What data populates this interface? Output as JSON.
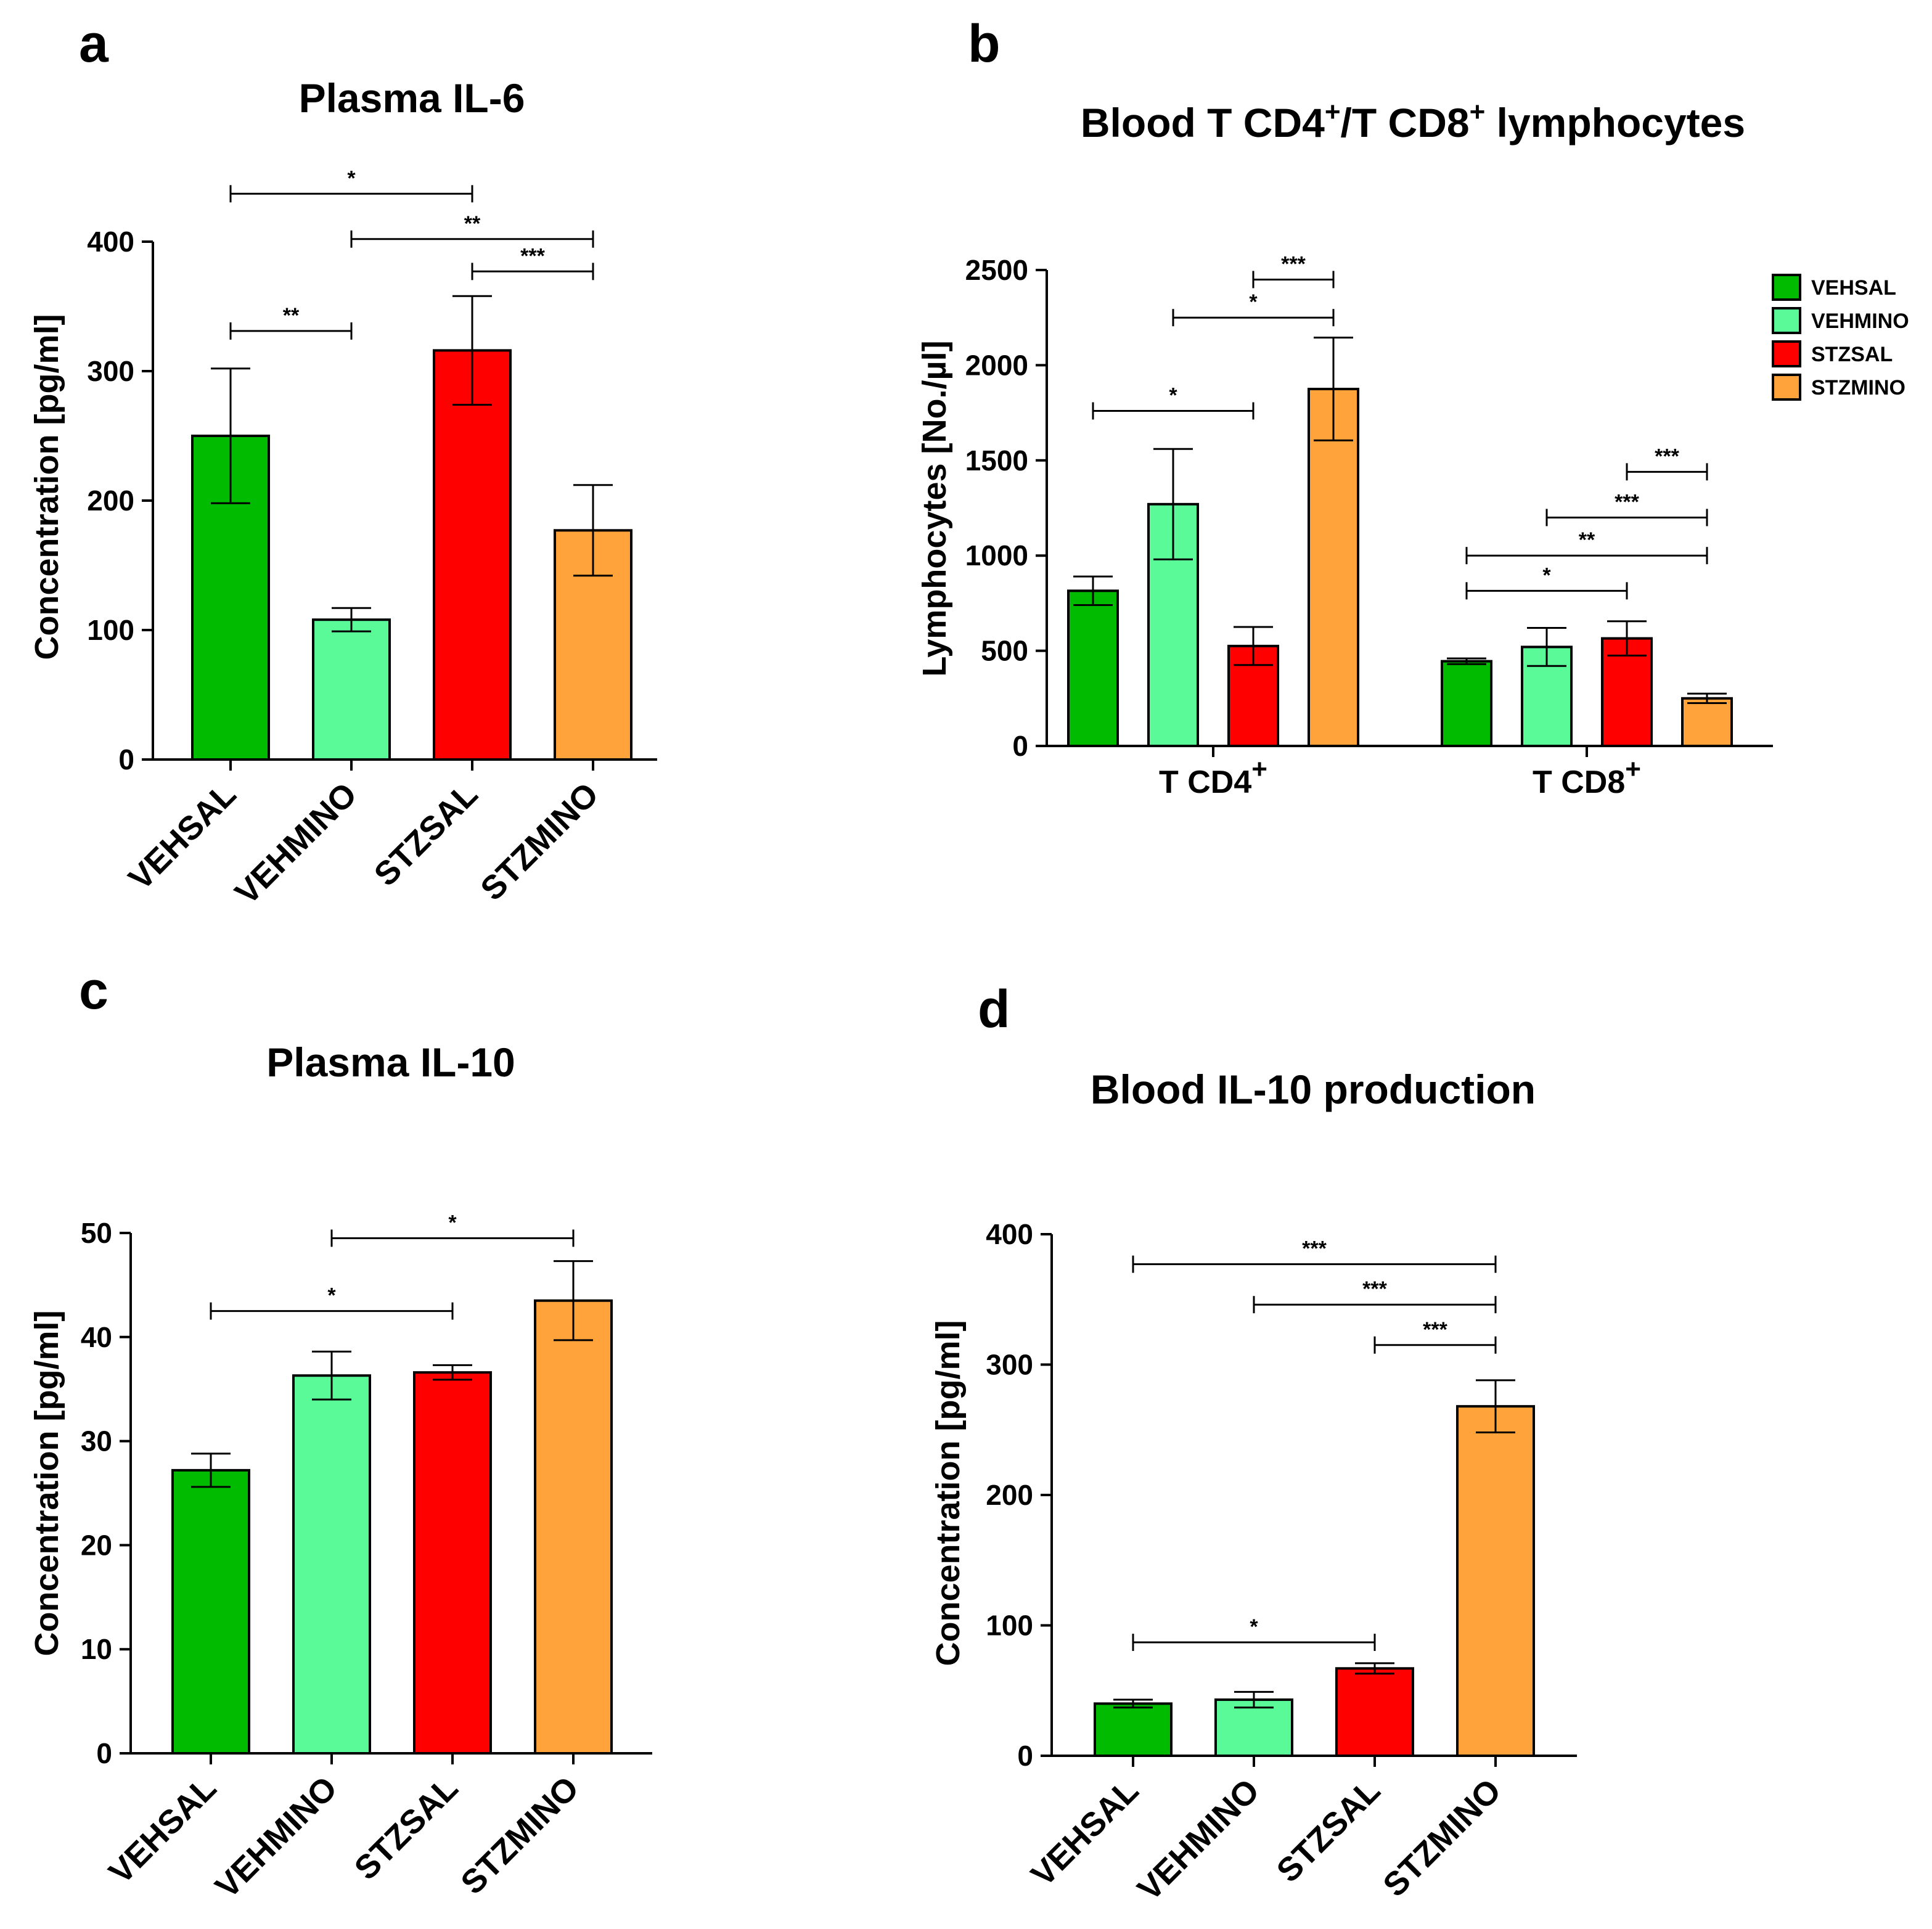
{
  "colors": {
    "VEHSAL": "#00bb00",
    "VEHMINO": "#5bfa98",
    "STZSAL": "#ff0000",
    "STZMINO": "#ffa33a"
  },
  "legend": [
    "VEHSAL",
    "VEHMINO",
    "STZSAL",
    "STZMINO"
  ],
  "chart_data": [
    {
      "id": "a",
      "panel_letter": "a",
      "type": "bar",
      "title": "Plasma IL-6",
      "ylabel": "Concentration [pg/ml]",
      "xlabel": "",
      "ylim": [
        0,
        400
      ],
      "yticks": [
        0,
        100,
        200,
        300,
        400
      ],
      "categories": [
        "VEHSAL",
        "VEHMINO",
        "STZSAL",
        "STZMINO"
      ],
      "values": [
        250,
        108,
        316,
        177
      ],
      "errors": [
        52,
        9,
        42,
        35
      ],
      "significance": [
        {
          "from": 0,
          "to": 2,
          "y": 437,
          "label": "*"
        },
        {
          "from": 1,
          "to": 3,
          "y": 402,
          "label": "**"
        },
        {
          "from": 2,
          "to": 3,
          "y": 377,
          "label": "***"
        },
        {
          "from": 0,
          "to": 1,
          "y": 331,
          "label": "**"
        }
      ]
    },
    {
      "id": "b",
      "panel_letter": "b",
      "type": "bar",
      "title_parts": [
        "Blood T CD4",
        "+",
        "/T CD8",
        "+",
        " lymphocytes"
      ],
      "ylabel": "Lymphocytes [No./µl]",
      "xlabel": "",
      "ylim": [
        0,
        2500
      ],
      "yticks": [
        0,
        500,
        1000,
        1500,
        2000,
        2500
      ],
      "groups": [
        {
          "label": "T CD4",
          "sup": "+"
        },
        {
          "label": "T CD8",
          "sup": "+"
        }
      ],
      "series": [
        {
          "name": "VEHSAL",
          "values": [
            815,
            445
          ],
          "errors": [
            75,
            15
          ]
        },
        {
          "name": "VEHMINO",
          "values": [
            1270,
            520
          ],
          "errors": [
            290,
            100
          ]
        },
        {
          "name": "STZSAL",
          "values": [
            525,
            565
          ],
          "errors": [
            100,
            90
          ]
        },
        {
          "name": "STZMINO",
          "values": [
            1875,
            250
          ],
          "errors": [
            270,
            25
          ]
        }
      ],
      "significance": [
        {
          "group": 0,
          "from": 2,
          "to": 3,
          "y": 2450,
          "label": "***"
        },
        {
          "group": 0,
          "from": 1,
          "to": 3,
          "y": 2250,
          "label": "*"
        },
        {
          "group": 0,
          "from": 0,
          "to": 2,
          "y": 1760,
          "label": "*"
        },
        {
          "group": 1,
          "from": 2,
          "to": 3,
          "y": 1440,
          "label": "***"
        },
        {
          "group": 1,
          "from": 1,
          "to": 3,
          "y": 1200,
          "label": "***"
        },
        {
          "group": 1,
          "from": 0,
          "to": 3,
          "y": 1000,
          "label": "**"
        },
        {
          "group": 1,
          "from": 0,
          "to": 2,
          "y": 815,
          "label": "*"
        }
      ]
    },
    {
      "id": "c",
      "panel_letter": "c",
      "type": "bar",
      "title": "Plasma IL-10",
      "ylabel": "Concentration [pg/ml]",
      "xlabel": "",
      "ylim": [
        0,
        50
      ],
      "yticks": [
        0,
        10,
        20,
        30,
        40,
        50
      ],
      "categories": [
        "VEHSAL",
        "VEHMINO",
        "STZSAL",
        "STZMINO"
      ],
      "values": [
        27.2,
        36.3,
        36.6,
        43.5
      ],
      "errors": [
        1.6,
        2.3,
        0.7,
        3.8
      ],
      "significance": [
        {
          "from": 1,
          "to": 3,
          "y": 49.5,
          "label": "*"
        },
        {
          "from": 0,
          "to": 2,
          "y": 42.5,
          "label": "*"
        }
      ]
    },
    {
      "id": "d",
      "panel_letter": "d",
      "type": "bar",
      "title": "Blood IL-10 production",
      "ylabel": "Concentration [pg/ml]",
      "xlabel": "",
      "ylim": [
        0,
        400
      ],
      "yticks": [
        0,
        100,
        200,
        300,
        400
      ],
      "categories": [
        "VEHSAL",
        "VEHMINO",
        "STZSAL",
        "STZMINO"
      ],
      "values": [
        40,
        43,
        67,
        268
      ],
      "errors": [
        3,
        6,
        4,
        20
      ],
      "significance": [
        {
          "from": 0,
          "to": 3,
          "y": 377,
          "label": "***"
        },
        {
          "from": 1,
          "to": 3,
          "y": 346,
          "label": "***"
        },
        {
          "from": 2,
          "to": 3,
          "y": 315,
          "label": "***"
        },
        {
          "from": 0,
          "to": 2,
          "y": 87,
          "label": "*"
        }
      ]
    }
  ]
}
